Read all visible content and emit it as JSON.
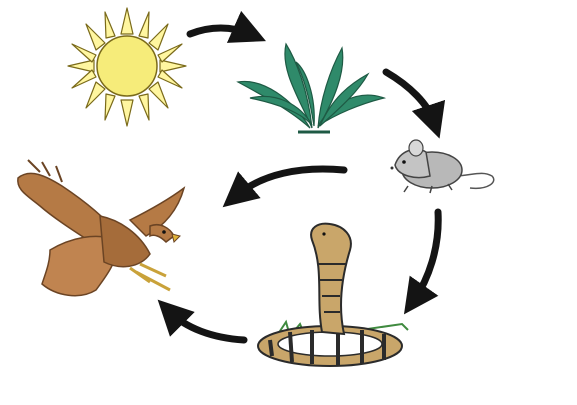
{
  "diagram": {
    "type": "food-chain-cycle",
    "nodes": [
      {
        "id": "sun",
        "icon": "sun-icon"
      },
      {
        "id": "plant",
        "icon": "plant-icon"
      },
      {
        "id": "mouse",
        "icon": "mouse-icon"
      },
      {
        "id": "snake",
        "icon": "cobra-icon"
      },
      {
        "id": "eagle",
        "icon": "eagle-icon"
      }
    ],
    "edges": [
      {
        "from": "sun",
        "to": "plant"
      },
      {
        "from": "plant",
        "to": "mouse"
      },
      {
        "from": "mouse",
        "to": "eagle"
      },
      {
        "from": "mouse",
        "to": "snake"
      },
      {
        "from": "snake",
        "to": "eagle"
      }
    ]
  },
  "colors": {
    "sun_fill": "#f6ec7a",
    "sun_outline": "#7a6a1a",
    "plant_leaf": "#2f8a6a",
    "plant_dark": "#1e5a44",
    "mouse_body": "#b8b8b8",
    "snake_body": "#c9a66a",
    "snake_band": "#2b2b2b",
    "eagle_body": "#b57a45",
    "eagle_dark": "#6b4424",
    "arrow": "#141414"
  }
}
